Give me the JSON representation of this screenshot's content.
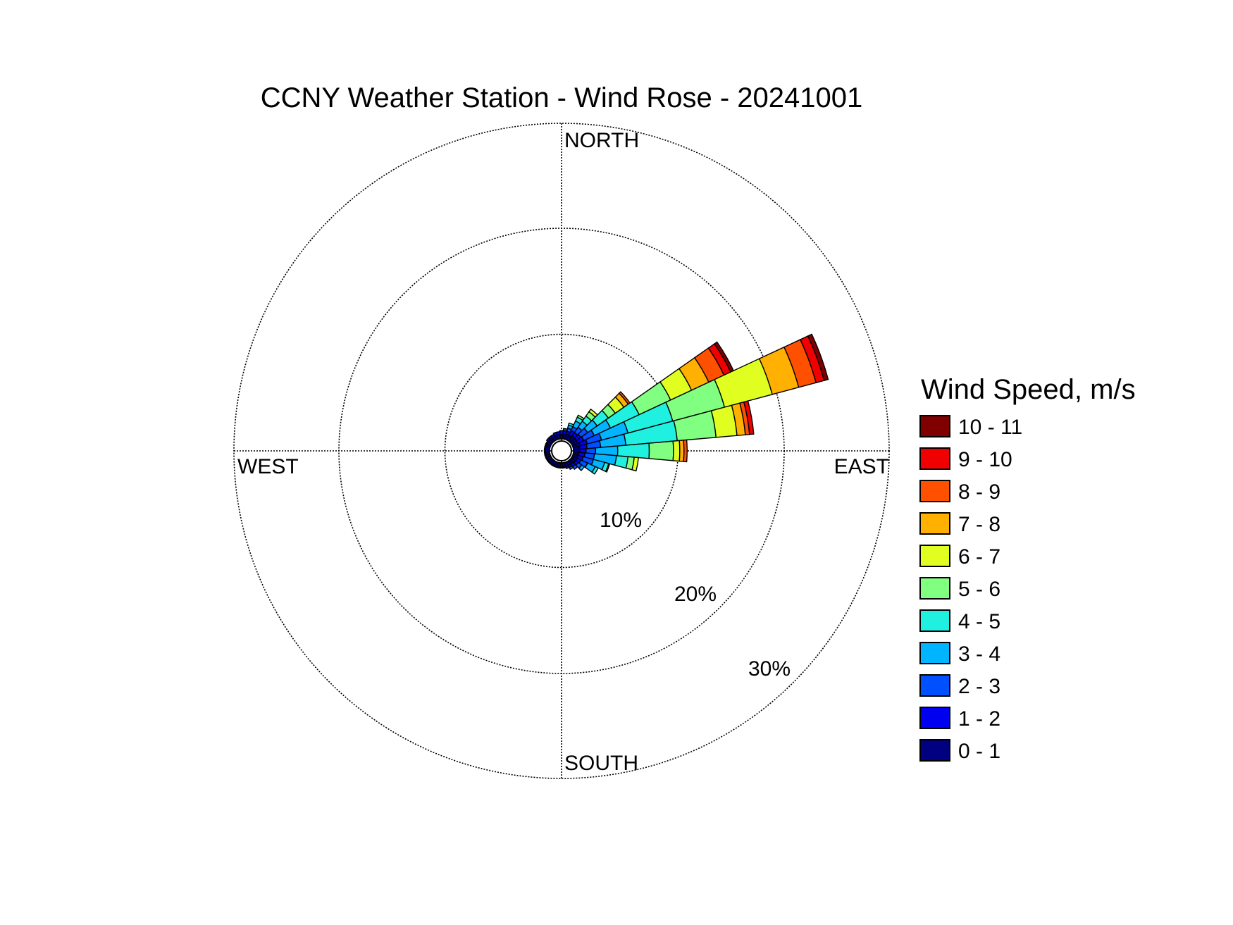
{
  "chart_data": {
    "type": "wind-rose",
    "title": "CCNY Weather Station - Wind Rose - 20241001",
    "compass_labels": {
      "north": "NORTH",
      "south": "SOUTH",
      "east": "EAST",
      "west": "WEST"
    },
    "radial_ticks": [
      {
        "value": 10,
        "label": "10%"
      },
      {
        "value": 20,
        "label": "20%"
      },
      {
        "value": 30,
        "label": "30%"
      }
    ],
    "rmax": 30,
    "grid": true,
    "legend": {
      "title": "Wind Speed, m/s",
      "position": "right",
      "bins": [
        {
          "label": "0 - 1",
          "color": "#000080"
        },
        {
          "label": "1 - 2",
          "color": "#0000F0"
        },
        {
          "label": "2 - 3",
          "color": "#0050FF"
        },
        {
          "label": "3 - 4",
          "color": "#00B4FF"
        },
        {
          "label": "4 - 5",
          "color": "#20F0E0"
        },
        {
          "label": "5 - 6",
          "color": "#80FF80"
        },
        {
          "label": "6 - 7",
          "color": "#E0FF20"
        },
        {
          "label": "7 - 8",
          "color": "#FFB000"
        },
        {
          "label": "8 - 9",
          "color": "#FF5000"
        },
        {
          "label": "9 - 10",
          "color": "#F00000"
        },
        {
          "label": "10 - 11",
          "color": "#800000"
        }
      ]
    },
    "sector_width_deg": 10,
    "directions": [
      {
        "deg": 20,
        "cum": [
          0.5,
          0.8,
          1.1,
          1.4,
          1.6
        ]
      },
      {
        "deg": 30,
        "cum": [
          0.5,
          1.0,
          1.4,
          2.0,
          2.4,
          2.6
        ]
      },
      {
        "deg": 40,
        "cum": [
          0.6,
          1.0,
          1.6,
          2.3,
          2.9,
          3.4,
          3.7
        ]
      },
      {
        "deg": 50,
        "cum": [
          0.6,
          1.1,
          1.9,
          3.0,
          4.3,
          5.1,
          6.1,
          6.6,
          6.8
        ]
      },
      {
        "deg": 60,
        "cum": [
          0.6,
          1.2,
          2.3,
          4.0,
          7.0,
          10.3,
          12.5,
          14.3,
          15.9,
          16.6,
          16.9
        ]
      },
      {
        "deg": 70,
        "cum": [
          0.7,
          1.4,
          2.8,
          5.4,
          9.8,
          14.9,
          19.6,
          22.2,
          23.9,
          24.7,
          25.1
        ]
      },
      {
        "deg": 80,
        "cum": [
          0.6,
          1.3,
          2.6,
          5.0,
          9.9,
          13.6,
          15.6,
          16.4,
          16.8,
          17.2
        ]
      },
      {
        "deg": 90,
        "cum": [
          0.6,
          1.2,
          2.1,
          4.2,
          7.2,
          9.5,
          10.1,
          10.5,
          10.8
        ]
      },
      {
        "deg": 100,
        "cum": [
          0.5,
          1.1,
          2.0,
          4.1,
          5.2,
          5.8,
          6.2
        ]
      },
      {
        "deg": 110,
        "cum": [
          0.5,
          1.0,
          2.0,
          3.1,
          3.5,
          3.6
        ]
      },
      {
        "deg": 120,
        "cum": [
          0.5,
          0.9,
          1.6,
          2.4,
          2.7
        ]
      },
      {
        "deg": 130,
        "cum": [
          0.5,
          0.8,
          1.2,
          1.5
        ]
      },
      {
        "deg": 140,
        "cum": [
          0.4,
          0.7,
          1.0
        ]
      },
      {
        "deg": 150,
        "cum": [
          0.4,
          0.6,
          0.8
        ]
      },
      {
        "deg": 160,
        "cum": [
          0.4,
          0.6
        ]
      },
      {
        "deg": 170,
        "cum": [
          0.4,
          0.5
        ]
      },
      {
        "deg": 180,
        "cum": [
          0.4,
          0.5
        ]
      },
      {
        "deg": 190,
        "cum": [
          0.4,
          0.5
        ]
      },
      {
        "deg": 200,
        "cum": [
          0.4,
          0.5
        ]
      },
      {
        "deg": 210,
        "cum": [
          0.4,
          0.5
        ]
      },
      {
        "deg": 220,
        "cum": [
          0.4,
          0.5
        ]
      },
      {
        "deg": 230,
        "cum": [
          0.4,
          0.5
        ]
      },
      {
        "deg": 240,
        "cum": [
          0.4,
          0.5
        ]
      },
      {
        "deg": 250,
        "cum": [
          0.4,
          0.5
        ]
      },
      {
        "deg": 260,
        "cum": [
          0.4,
          0.5
        ]
      },
      {
        "deg": 270,
        "cum": [
          0.4,
          0.5
        ]
      },
      {
        "deg": 280,
        "cum": [
          0.4,
          0.5
        ]
      },
      {
        "deg": 290,
        "cum": [
          0.4,
          0.5
        ]
      },
      {
        "deg": 300,
        "cum": [
          0.4,
          0.5
        ]
      },
      {
        "deg": 310,
        "cum": [
          0.4,
          0.6
        ]
      },
      {
        "deg": 320,
        "cum": [
          0.4,
          0.6
        ]
      },
      {
        "deg": 330,
        "cum": [
          0.4,
          0.6
        ]
      },
      {
        "deg": 340,
        "cum": [
          0.4,
          0.7
        ]
      },
      {
        "deg": 350,
        "cum": [
          0.4,
          0.7
        ]
      },
      {
        "deg": 0,
        "cum": [
          0.4,
          0.8
        ]
      },
      {
        "deg": 10,
        "cum": [
          0.5,
          0.8,
          1.0
        ]
      }
    ]
  }
}
